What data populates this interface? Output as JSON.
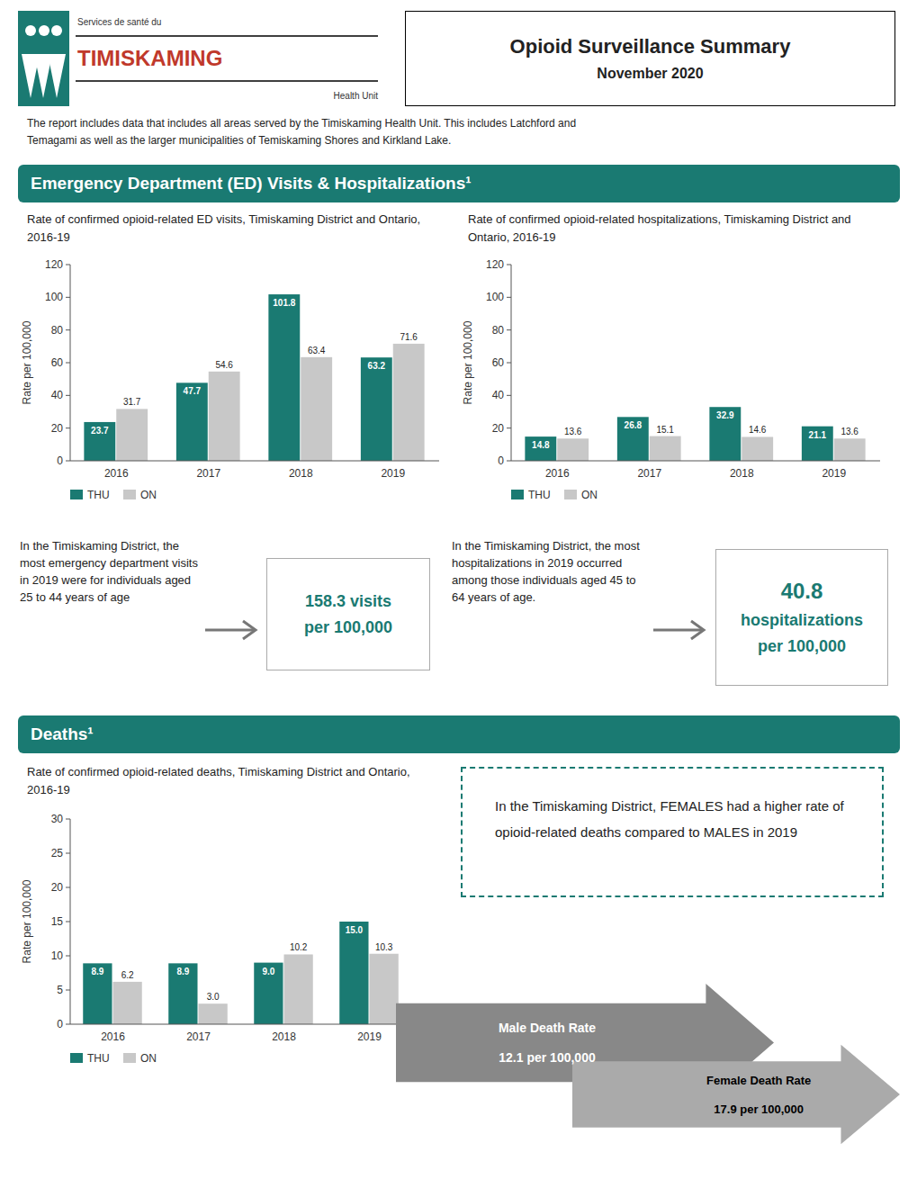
{
  "title": "Opioid Surveillance Summary",
  "subtitle": "November 2020",
  "annotations": [
    "Services de santé du",
    "TIMISKAMING",
    "Health Unit",
    "The report includes data that includes all areas served by the Timiskaming Health Unit. This includes Latchford and\nTemagami as well as the larger municipalities of Temiskaming Shores and Kirkland Lake.",
    "Emergency Department (ED) Visits & Hospitalizations¹",
    "Deaths¹"
  ],
  "chart_data": [
    {
      "type": "bar",
      "title": "Rate of confirmed opioid-related ED visits, Timiskaming District and Ontario, 2016-19",
      "y_label": "Rate per 100,000",
      "categories": [
        "2016",
        "2017",
        "2018",
        "2019"
      ],
      "series": [
        {
          "name": "THU",
          "color": "#1a7a72",
          "values": [
            23.7,
            47.7,
            101.8,
            63.2
          ]
        },
        {
          "name": "ON",
          "color": "#c8c8c8",
          "values": [
            31.7,
            54.6,
            63.4,
            71.6
          ]
        }
      ],
      "ylim": [
        0,
        120
      ],
      "yticks": [
        0,
        20,
        40,
        60,
        80,
        100,
        120
      ],
      "grid": false,
      "legend": "bottom",
      "data_labels": true,
      "annotations": [
        "In the Timiskaming District, the most emergency department visits in 2019 were for individuals aged 25 to 44 years of age",
        "158.3 visits",
        "per 100,000"
      ]
    },
    {
      "type": "bar",
      "title": "Rate of confirmed opioid-related hospitalizations, Timiskaming District and Ontario, 2016-19",
      "y_label": "Rate per 100,000",
      "categories": [
        "2016",
        "2017",
        "2018",
        "2019"
      ],
      "series": [
        {
          "name": "THU",
          "color": "#1a7a72",
          "values": [
            14.8,
            26.8,
            32.9,
            21.1
          ]
        },
        {
          "name": "ON",
          "color": "#c8c8c8",
          "values": [
            13.6,
            15.1,
            14.6,
            13.6
          ]
        }
      ],
      "ylim": [
        0,
        120
      ],
      "yticks": [
        0,
        20,
        40,
        60,
        80,
        100,
        120
      ],
      "grid": false,
      "legend": "bottom",
      "data_labels": true,
      "annotations": [
        "In the Timiskaming District, the most hospitalizations in 2019 occurred among those individuals aged 45 to 64 years of age.",
        "40.8",
        "hospitalizations",
        "per 100,000"
      ]
    },
    {
      "type": "bar",
      "title": "Rate of confirmed opioid-related deaths, Timiskaming District and Ontario, 2016-19",
      "y_label": "Rate per 100,000",
      "categories": [
        "2016",
        "2017",
        "2018",
        "2019"
      ],
      "series": [
        {
          "name": "THU",
          "color": "#1a7a72",
          "values": [
            8.9,
            8.9,
            9.0,
            15.0
          ],
          "value_labels": [
            "8.9",
            "8.9",
            "9.0",
            "15.0"
          ]
        },
        {
          "name": "ON",
          "color": "#c8c8c8",
          "values": [
            6.2,
            3.0,
            10.2,
            10.3
          ],
          "value_labels": [
            "6.2",
            "3.0",
            "10.2",
            "10.3"
          ]
        }
      ],
      "ylim": [
        0,
        30
      ],
      "yticks": [
        0,
        5,
        10,
        15,
        20,
        25,
        30
      ],
      "grid": false,
      "legend": "bottom",
      "data_labels": true,
      "annotations": [
        "In the Timiskaming District, FEMALES had a higher rate of opioid-related deaths compared to MALES in 2019",
        "Male Death Rate",
        "12.1 per 100,000",
        "Female Death Rate",
        "17.9 per 100,000"
      ]
    }
  ]
}
